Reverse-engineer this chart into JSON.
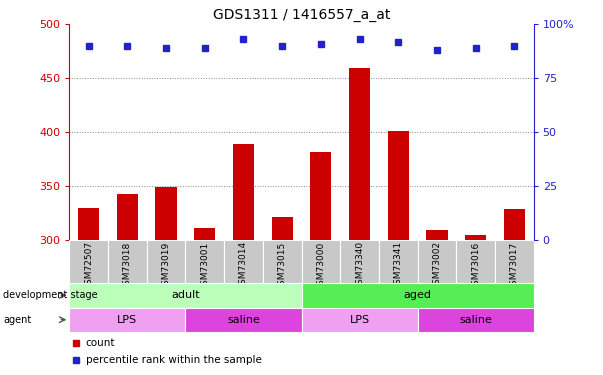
{
  "title": "GDS1311 / 1416557_a_at",
  "samples": [
    "GSM72507",
    "GSM73018",
    "GSM73019",
    "GSM73001",
    "GSM73014",
    "GSM73015",
    "GSM73000",
    "GSM73340",
    "GSM73341",
    "GSM73002",
    "GSM73016",
    "GSM73017"
  ],
  "counts": [
    330,
    343,
    349,
    311,
    389,
    321,
    382,
    460,
    401,
    309,
    305,
    329
  ],
  "percentiles": [
    90,
    90,
    89,
    89,
    93,
    90,
    91,
    93,
    92,
    88,
    89,
    90
  ],
  "ylim_left": [
    300,
    500
  ],
  "ylim_right": [
    0,
    100
  ],
  "yticks_left": [
    300,
    350,
    400,
    450,
    500
  ],
  "yticks_right": [
    0,
    25,
    50,
    75,
    100
  ],
  "bar_color": "#cc0000",
  "dot_color": "#2222cc",
  "grid_color": "#888888",
  "left_axis_color": "#cc0000",
  "right_axis_color": "#2222cc",
  "dev_stages": [
    {
      "label": "adult",
      "start": 0,
      "end": 6,
      "color": "#bbffbb"
    },
    {
      "label": "aged",
      "start": 6,
      "end": 12,
      "color": "#55ee55"
    }
  ],
  "agents": [
    {
      "label": "LPS",
      "start": 0,
      "end": 3,
      "color": "#f0a0f0"
    },
    {
      "label": "saline",
      "start": 3,
      "end": 6,
      "color": "#dd44dd"
    },
    {
      "label": "LPS",
      "start": 6,
      "end": 9,
      "color": "#f0a0f0"
    },
    {
      "label": "saline",
      "start": 9,
      "end": 12,
      "color": "#dd44dd"
    }
  ]
}
